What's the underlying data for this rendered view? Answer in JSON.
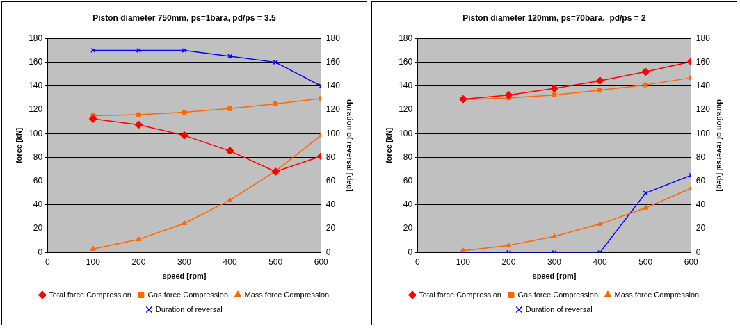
{
  "chart_data": [
    {
      "type": "line",
      "title": "Piston diameter 750mm, ps=1bara, pd/ps = 3.5",
      "xlabel": "speed [rpm]",
      "ylabel": "force [kN]",
      "y2label": "duration of reversal [deg]",
      "x": [
        100,
        200,
        300,
        400,
        500,
        600
      ],
      "xlim": [
        0,
        600
      ],
      "xticks": [
        0,
        100,
        200,
        300,
        400,
        500,
        600
      ],
      "ylim": [
        0,
        180
      ],
      "yticks": [
        0,
        20,
        40,
        60,
        80,
        100,
        120,
        140,
        160,
        180
      ],
      "y2lim": [
        0,
        180
      ],
      "y2ticks": [
        0,
        20,
        40,
        60,
        80,
        100,
        120,
        140,
        160,
        180
      ],
      "grid": "y",
      "legend": "bottom",
      "series": [
        {
          "name": "Gas force Compression",
          "color": "#ff6600",
          "marker": "square",
          "values": [
            115,
            116,
            118,
            121,
            125,
            129.5
          ]
        },
        {
          "name": "Mass force Compression",
          "color": "#ff6600",
          "marker": "triangle",
          "values": [
            3,
            11,
            24.5,
            44,
            68.5,
            98.5
          ]
        },
        {
          "name": "Total force Compression",
          "color": "#ff0000",
          "marker": "diamond",
          "values": [
            112.5,
            107.5,
            98.5,
            85.5,
            68,
            81
          ]
        },
        {
          "name": "Duration of reversal",
          "color": "#0000ff",
          "marker": "cross",
          "axis": "y2",
          "values": [
            170,
            170,
            170,
            165,
            160,
            140
          ]
        }
      ]
    },
    {
      "type": "line",
      "title": "Piston diameter 120mm, ps=70bara,  pd/ps = 2",
      "xlabel": "speed [rpm]",
      "ylabel": "force [kN]",
      "y2label": "duration of reversal [deg]",
      "x": [
        100,
        200,
        300,
        400,
        500,
        600
      ],
      "xlim": [
        0,
        600
      ],
      "xticks": [
        0,
        100,
        200,
        300,
        400,
        500,
        600
      ],
      "ylim": [
        0,
        180
      ],
      "yticks": [
        0,
        20,
        40,
        60,
        80,
        100,
        120,
        140,
        160,
        180
      ],
      "y2lim": [
        0,
        180
      ],
      "y2ticks": [
        0,
        20,
        40,
        60,
        80,
        100,
        120,
        140,
        160,
        180
      ],
      "grid": "y",
      "legend": "bottom",
      "series": [
        {
          "name": "Gas force Compression",
          "color": "#ff6600",
          "marker": "square",
          "values": [
            128.5,
            130,
            132.5,
            136.5,
            141,
            147
          ]
        },
        {
          "name": "Mass force Compression",
          "color": "#ff6600",
          "marker": "triangle",
          "values": [
            1.5,
            6,
            13.5,
            24,
            37.5,
            54
          ]
        },
        {
          "name": "Total force Compression",
          "color": "#ff0000",
          "marker": "diamond",
          "values": [
            129,
            132.5,
            138,
            144.5,
            152,
            160.5
          ]
        },
        {
          "name": "Duration of reversal",
          "color": "#0000ff",
          "marker": "cross",
          "axis": "y2",
          "values": [
            0,
            0,
            0,
            0,
            50,
            65
          ]
        }
      ]
    }
  ]
}
